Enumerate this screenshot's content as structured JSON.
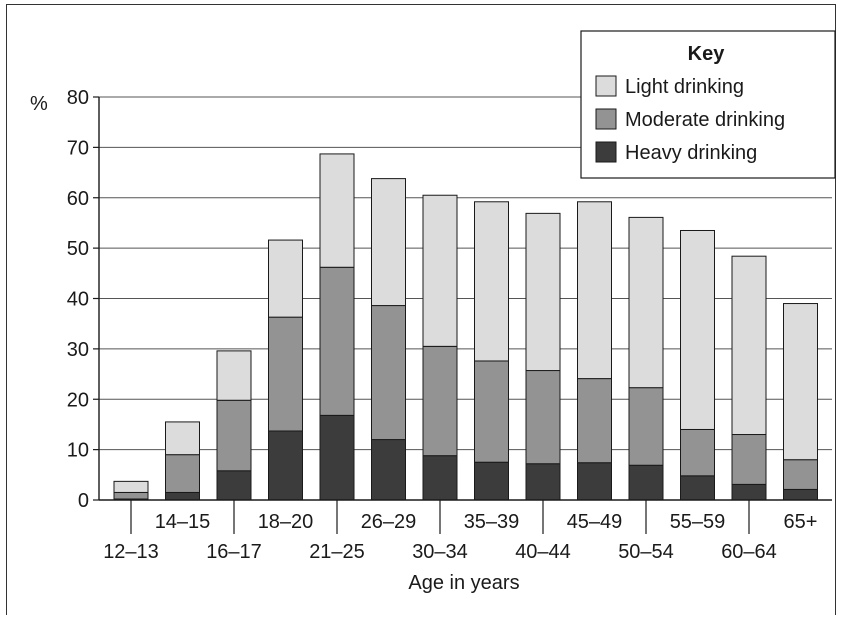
{
  "chart_data": {
    "type": "bar",
    "stacked": true,
    "title": "",
    "xlabel": "Age in years",
    "ylabel": "%",
    "ylim": [
      0,
      80
    ],
    "yticks": [
      0,
      10,
      20,
      30,
      40,
      50,
      60,
      70,
      80
    ],
    "grid": true,
    "legend_title": "Key",
    "legend_position": "top-right",
    "categories": [
      "12–13",
      "14–15",
      "16–17",
      "18–20",
      "21–25",
      "26–29",
      "30–34",
      "35–39",
      "40–44",
      "45–49",
      "50–54",
      "55–59",
      "60–64",
      "65+"
    ],
    "series": [
      {
        "name": "Heavy drinking",
        "color": "#3c3c3c",
        "values": [
          0.2,
          1.5,
          5.8,
          13.7,
          16.8,
          12.0,
          8.8,
          7.5,
          7.2,
          7.4,
          6.9,
          4.8,
          3.1,
          2.1
        ]
      },
      {
        "name": "Moderate drinking",
        "color": "#939393",
        "values": [
          1.3,
          7.5,
          14.0,
          22.6,
          29.4,
          26.6,
          21.7,
          20.1,
          18.5,
          16.7,
          15.4,
          9.2,
          9.9,
          5.9
        ]
      },
      {
        "name": "Light drinking",
        "color": "#dcdcdc",
        "values": [
          2.2,
          6.5,
          9.8,
          15.3,
          22.5,
          25.2,
          30.0,
          31.6,
          31.2,
          35.1,
          33.8,
          39.5,
          35.4,
          31.0
        ]
      }
    ]
  }
}
